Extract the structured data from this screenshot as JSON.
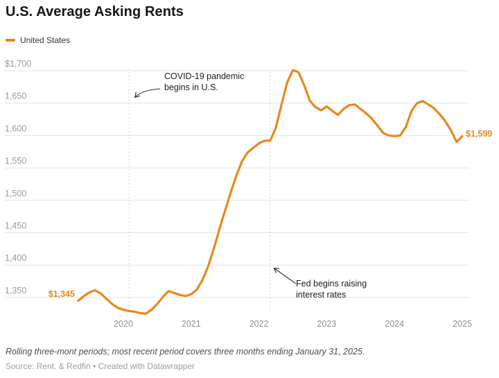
{
  "header": {
    "title": "U.S. Average Asking Rents"
  },
  "legend": {
    "items": [
      {
        "label": "United States",
        "color": "#E8871B"
      }
    ]
  },
  "chart_data": {
    "type": "line",
    "title": "U.S. Average Asking Rents",
    "ylabel": "",
    "xlabel": "",
    "grid": "horizontal",
    "legend_position": "top-left",
    "ylim": [
      1325,
      1702
    ],
    "y_ticks": [
      {
        "label": "$1,700",
        "value": 1700
      },
      {
        "label": "1,650",
        "value": 1650
      },
      {
        "label": "1,600",
        "value": 1600
      },
      {
        "label": "1,550",
        "value": 1550
      },
      {
        "label": "1,500",
        "value": 1500
      },
      {
        "label": "1,450",
        "value": 1450
      },
      {
        "label": "1,400",
        "value": 1400
      },
      {
        "label": "1,350",
        "value": 1350
      }
    ],
    "x_ticks": [
      2020,
      2021,
      2022,
      2023,
      2024,
      2025
    ],
    "series": [
      {
        "name": "United States",
        "color": "#E8871B",
        "start_month": "2019-05",
        "frequency": "monthly",
        "values": [
          1345,
          1352,
          1358,
          1361,
          1356,
          1348,
          1340,
          1334,
          1331,
          1329,
          1328,
          1326,
          1325,
          1331,
          1340,
          1351,
          1360,
          1357,
          1354,
          1352,
          1355,
          1362,
          1377,
          1398,
          1425,
          1455,
          1484,
          1512,
          1538,
          1560,
          1574,
          1581,
          1588,
          1592,
          1592,
          1612,
          1648,
          1682,
          1701,
          1698,
          1678,
          1654,
          1644,
          1639,
          1645,
          1638,
          1632,
          1641,
          1647,
          1648,
          1641,
          1634,
          1626,
          1615,
          1604,
          1600,
          1599,
          1600,
          1613,
          1638,
          1650,
          1653,
          1648,
          1642,
          1633,
          1622,
          1608,
          1590,
          1599
        ]
      }
    ],
    "first_point_label": "$1,345",
    "last_point_label": "$1,599",
    "annotations": [
      {
        "text": "COVID-19 pandemic begins in U.S.",
        "x": "2020-02"
      },
      {
        "text": "Fed begins raising interest rates",
        "x": "2022-03"
      }
    ]
  },
  "footer": {
    "note": "Rolling three-mont periods; most recent period covers three months ending January 31, 2025.",
    "source": "Source: Rent. & Redfin • Created with Datawrapper"
  }
}
